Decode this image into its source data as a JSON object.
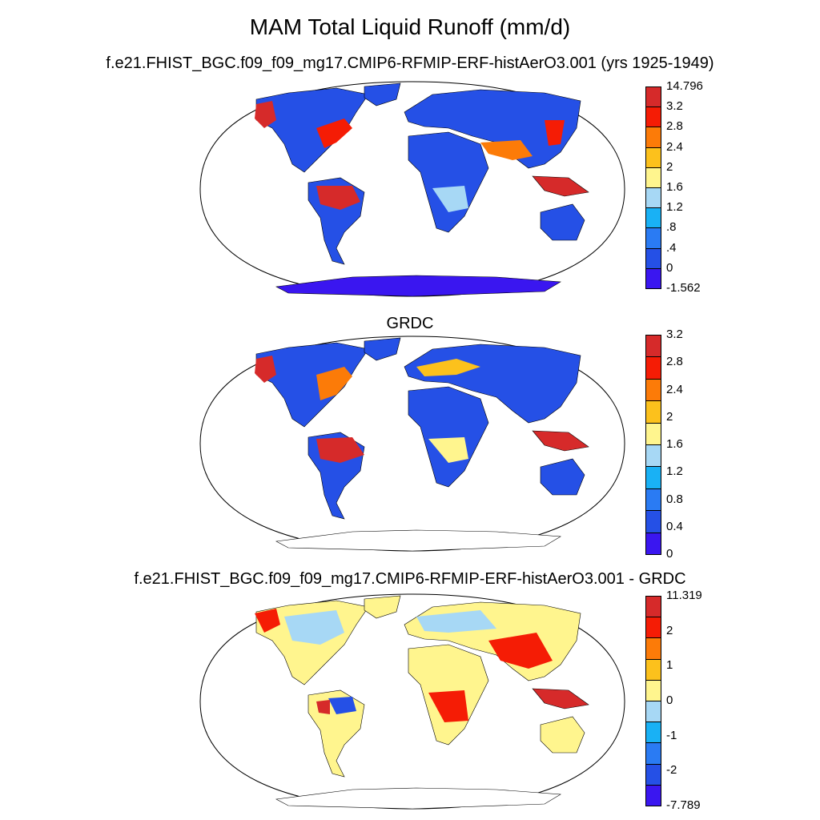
{
  "title": "MAM Total Liquid Runoff (mm/d)",
  "panels": [
    {
      "id": "model",
      "title": "f.e21.FHIST_BGC.f09_f09_mg17.CMIP6-RFMIP-ERF-histAerO3.001 (yrs 1925-1949)",
      "legend": {
        "colors": [
          "#3a16f0",
          "#2550e6",
          "#2a7bf3",
          "#19b1f5",
          "#a7d8f5",
          "#fff58e",
          "#fcc11c",
          "#fc7b08",
          "#f51c05",
          "#d62a2a"
        ],
        "labels": [
          "-1.562",
          "0",
          ".4",
          ".8",
          "1.2",
          "1.6",
          "2",
          "2.4",
          "2.8",
          "3.2",
          "14.796"
        ]
      }
    },
    {
      "id": "obs",
      "title": "GRDC",
      "legend": {
        "colors": [
          "#3a16f0",
          "#2550e6",
          "#2a7bf3",
          "#19b1f5",
          "#a7d8f5",
          "#fff58e",
          "#fcc11c",
          "#fc7b08",
          "#f51c05",
          "#d62a2a"
        ],
        "labels": [
          "0",
          "0.4",
          "0.8",
          "1.2",
          "1.6",
          "2",
          "2.4",
          "2.8",
          "3.2"
        ]
      }
    },
    {
      "id": "diff",
      "title": "f.e21.FHIST_BGC.f09_f09_mg17.CMIP6-RFMIP-ERF-histAerO3.001 - GRDC",
      "legend": {
        "colors": [
          "#3a16f0",
          "#2550e6",
          "#2a7bf3",
          "#19b1f5",
          "#a7d8f5",
          "#fff58e",
          "#fcc11c",
          "#fc7b08",
          "#f51c05",
          "#d62a2a"
        ],
        "labels": [
          "-7.789",
          "-2",
          "-1",
          "0",
          "1",
          "2",
          "11.319"
        ]
      }
    }
  ]
}
